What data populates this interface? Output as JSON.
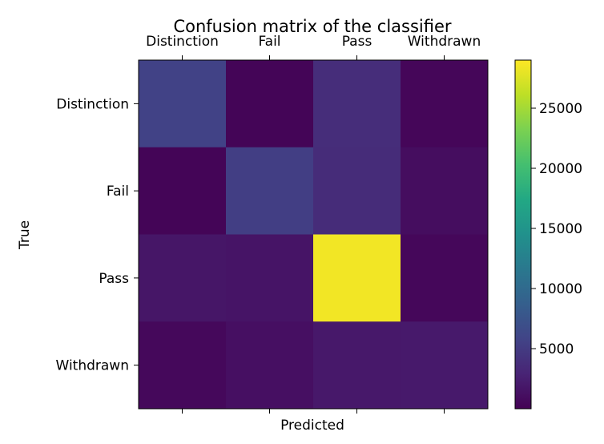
{
  "chart_data": {
    "type": "heatmap",
    "title": "Confusion matrix of the classifier",
    "xlabel": "Predicted",
    "ylabel": "True",
    "x_categories": [
      "Distinction",
      "Fail",
      "Pass",
      "Withdrawn"
    ],
    "y_categories": [
      "Distinction",
      "Fail",
      "Pass",
      "Withdrawn"
    ],
    "values": [
      [
        5600,
        300,
        3700,
        400
      ],
      [
        300,
        5300,
        3600,
        1000
      ],
      [
        1700,
        1600,
        28500,
        500
      ],
      [
        600,
        1200,
        1900,
        2000
      ]
    ],
    "colormap": "viridis",
    "color_range": [
      0,
      29000
    ],
    "colorbar_ticks": [
      5000,
      10000,
      15000,
      20000,
      25000
    ],
    "colorbar_tick_labels": [
      "5000",
      "10000",
      "15000",
      "20000",
      "25000"
    ],
    "grid": false,
    "x_ticks_position": "top"
  }
}
